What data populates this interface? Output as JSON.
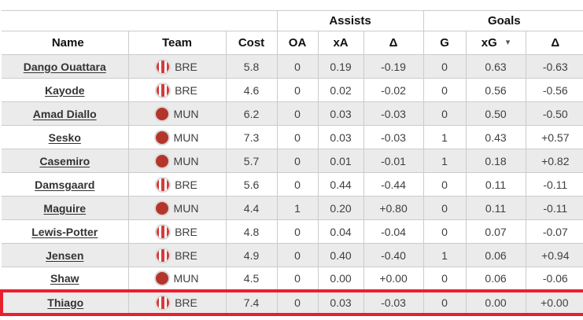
{
  "table": {
    "column_groups": [
      {
        "label": "",
        "span": 3
      },
      {
        "label": "Assists",
        "span": 3
      },
      {
        "label": "Goals",
        "span": 3
      }
    ],
    "columns": [
      {
        "key": "name",
        "label": "Name"
      },
      {
        "key": "team",
        "label": "Team"
      },
      {
        "key": "cost",
        "label": "Cost"
      },
      {
        "key": "oa",
        "label": "OA"
      },
      {
        "key": "xa",
        "label": "xA"
      },
      {
        "key": "assists_delta",
        "label": "Δ"
      },
      {
        "key": "g",
        "label": "G"
      },
      {
        "key": "xg",
        "label": "xG",
        "sorted": true
      },
      {
        "key": "goals_delta",
        "label": "Δ"
      }
    ],
    "sort": {
      "column": "xG",
      "caret": "▾",
      "highlight_color": "#d5ecd9"
    },
    "highlight_border_color": "#e8202e",
    "rows": [
      {
        "name": "Dango Ouattara",
        "team": "BRE",
        "badge": "bre",
        "cost": "5.8",
        "oa": "0",
        "xa": "0.19",
        "assists_delta": "-0.19",
        "g": "0",
        "xg": "0.63",
        "goals_delta": "-0.63",
        "highlighted": false
      },
      {
        "name": "Kayode",
        "team": "BRE",
        "badge": "bre",
        "cost": "4.6",
        "oa": "0",
        "xa": "0.02",
        "assists_delta": "-0.02",
        "g": "0",
        "xg": "0.56",
        "goals_delta": "-0.56",
        "highlighted": false
      },
      {
        "name": "Amad Diallo",
        "team": "MUN",
        "badge": "mun",
        "cost": "6.2",
        "oa": "0",
        "xa": "0.03",
        "assists_delta": "-0.03",
        "g": "0",
        "xg": "0.50",
        "goals_delta": "-0.50",
        "highlighted": false
      },
      {
        "name": "Sesko",
        "team": "MUN",
        "badge": "mun",
        "cost": "7.3",
        "oa": "0",
        "xa": "0.03",
        "assists_delta": "-0.03",
        "g": "1",
        "xg": "0.43",
        "goals_delta": "+0.57",
        "highlighted": false
      },
      {
        "name": "Casemiro",
        "team": "MUN",
        "badge": "mun",
        "cost": "5.7",
        "oa": "0",
        "xa": "0.01",
        "assists_delta": "-0.01",
        "g": "1",
        "xg": "0.18",
        "goals_delta": "+0.82",
        "highlighted": false
      },
      {
        "name": "Damsgaard",
        "team": "BRE",
        "badge": "bre",
        "cost": "5.6",
        "oa": "0",
        "xa": "0.44",
        "assists_delta": "-0.44",
        "g": "0",
        "xg": "0.11",
        "goals_delta": "-0.11",
        "highlighted": false
      },
      {
        "name": "Maguire",
        "team": "MUN",
        "badge": "mun",
        "cost": "4.4",
        "oa": "1",
        "xa": "0.20",
        "assists_delta": "+0.80",
        "g": "0",
        "xg": "0.11",
        "goals_delta": "-0.11",
        "highlighted": false
      },
      {
        "name": "Lewis-Potter",
        "team": "BRE",
        "badge": "bre",
        "cost": "4.8",
        "oa": "0",
        "xa": "0.04",
        "assists_delta": "-0.04",
        "g": "0",
        "xg": "0.07",
        "goals_delta": "-0.07",
        "highlighted": false
      },
      {
        "name": "Jensen",
        "team": "BRE",
        "badge": "bre",
        "cost": "4.9",
        "oa": "0",
        "xa": "0.40",
        "assists_delta": "-0.40",
        "g": "1",
        "xg": "0.06",
        "goals_delta": "+0.94",
        "highlighted": false
      },
      {
        "name": "Shaw",
        "team": "MUN",
        "badge": "mun",
        "cost": "4.5",
        "oa": "0",
        "xa": "0.00",
        "assists_delta": "+0.00",
        "g": "0",
        "xg": "0.06",
        "goals_delta": "-0.06",
        "highlighted": false
      },
      {
        "name": "Thiago",
        "team": "BRE",
        "badge": "bre",
        "cost": "7.4",
        "oa": "0",
        "xa": "0.03",
        "assists_delta": "-0.03",
        "g": "0",
        "xg": "0.00",
        "goals_delta": "+0.00",
        "highlighted": true
      }
    ],
    "team_colors": {
      "mun": "#b5352b",
      "bre": "#d43a3a"
    }
  }
}
